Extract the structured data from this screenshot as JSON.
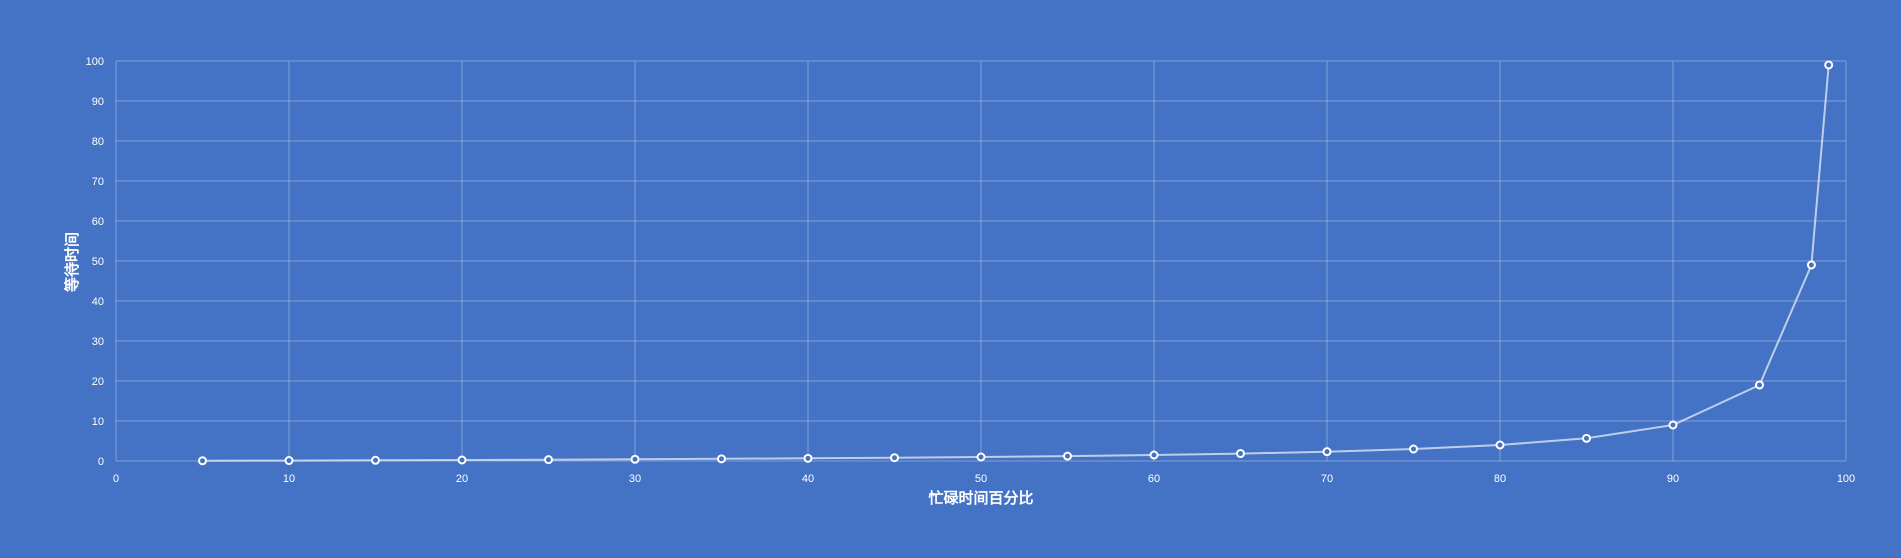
{
  "colors": {
    "background": "#4472c4",
    "grid": "#ffffff",
    "text": "#ffffff",
    "line": "#ffffff",
    "marker_fill": "#4472c4",
    "marker_stroke": "#ffffff"
  },
  "chart_data": {
    "type": "scatter",
    "title": "",
    "xlabel": "忙碌时间百分比",
    "ylabel": "等待时间",
    "xlim": [
      0,
      100
    ],
    "ylim": [
      0,
      100
    ],
    "x_ticks": [
      "0",
      "10",
      "20",
      "30",
      "40",
      "50",
      "60",
      "70",
      "80",
      "90",
      "100"
    ],
    "y_ticks": [
      "0",
      "10",
      "20",
      "30",
      "40",
      "50",
      "60",
      "70",
      "80",
      "90",
      "100"
    ],
    "grid": true,
    "legend": "none",
    "lines_connecting_points": true,
    "markers": true,
    "series": [
      {
        "x": [
          5,
          10,
          15,
          20,
          25,
          30,
          35,
          40,
          45,
          50,
          55,
          60,
          65,
          70,
          75,
          80,
          85,
          90,
          95,
          98,
          99
        ],
        "y": [
          0.05,
          0.11,
          0.18,
          0.25,
          0.33,
          0.43,
          0.54,
          0.67,
          0.82,
          1.0,
          1.22,
          1.5,
          1.86,
          2.33,
          3.0,
          4.0,
          5.67,
          9.0,
          19.0,
          49.0,
          99.0
        ]
      }
    ]
  }
}
